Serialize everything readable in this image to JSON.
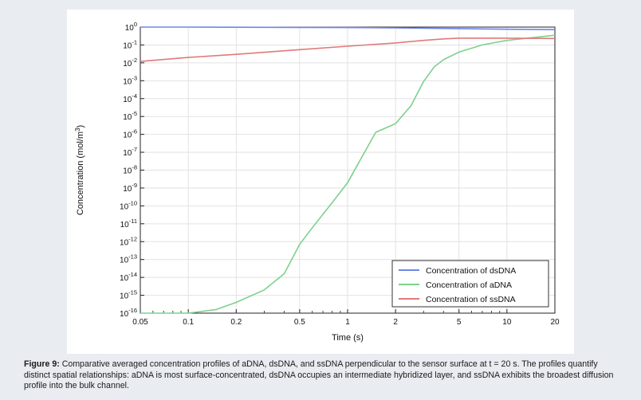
{
  "caption": {
    "label": "Figure 9:",
    "text": "Comparative averaged concentration profiles of aDNA, dsDNA, and ssDNA perpendicular to the sensor surface at t = 20 s. The profiles quantify distinct spatial relationships: aDNA is most surface-concentrated, dsDNA occupies an intermediate hybridized layer, and ssDNA exhibits the broadest diffusion profile into the bulk channel."
  },
  "chart_data": {
    "type": "line",
    "title": "",
    "xlabel": "Time (s)",
    "ylabel_main": "Concentration (mol/m",
    "ylabel_sup": "3",
    "ylabel_end": ")",
    "x_scale": "log",
    "y_scale": "log",
    "xlim": [
      0.05,
      20
    ],
    "ylim_exp": [
      -16,
      0
    ],
    "x_ticks": [
      0.05,
      0.1,
      0.2,
      0.5,
      1,
      2,
      5,
      10,
      20
    ],
    "x_tick_labels": [
      "0.05",
      "0.1",
      "0.2",
      "0.5",
      "1",
      "2",
      "5",
      "10",
      "20"
    ],
    "y_tick_exponents": [
      0,
      -1,
      -2,
      -3,
      -4,
      -5,
      -6,
      -7,
      -8,
      -9,
      -10,
      -11,
      -12,
      -13,
      -14,
      -15,
      -16
    ],
    "y_tick_base": "10",
    "y_tick_labels": [
      "0",
      "-1",
      "-2",
      "-3",
      "-4",
      "-5",
      "-6",
      "-7",
      "-8",
      "-9",
      "-10",
      "-11",
      "-12",
      "-13",
      "-14",
      "-15",
      "-16"
    ],
    "grid": true,
    "legend_position": "bottom-right",
    "series": [
      {
        "name": "Concentration of dsDNA",
        "color": "#6f86e8",
        "x": [
          0.05,
          0.1,
          0.2,
          0.5,
          1,
          2,
          5,
          10,
          20
        ],
        "y": [
          1.0,
          1.0,
          0.98,
          0.96,
          0.94,
          0.9,
          0.82,
          0.76,
          0.72
        ]
      },
      {
        "name": "Concentration of aDNA",
        "color": "#7ed08d",
        "x": [
          0.05,
          0.1,
          0.15,
          0.2,
          0.3,
          0.4,
          0.5,
          0.6,
          0.8,
          1,
          1.5,
          2,
          2.5,
          3,
          3.5,
          4,
          5,
          7,
          10,
          20
        ],
        "y": [
          1e-16,
          1e-16,
          1.6e-16,
          4e-16,
          2e-15,
          1.6e-14,
          7e-13,
          6e-12,
          1.5e-10,
          2e-09,
          1.3e-06,
          4e-06,
          4e-05,
          0.0009,
          0.006,
          0.015,
          0.04,
          0.1,
          0.18,
          0.35
        ]
      },
      {
        "name": "Concentration of ssDNA",
        "color": "#e07a7a",
        "x": [
          0.05,
          0.1,
          0.2,
          0.5,
          1,
          2,
          3,
          4,
          5,
          10,
          20
        ],
        "y": [
          0.012,
          0.02,
          0.03,
          0.055,
          0.085,
          0.13,
          0.18,
          0.22,
          0.24,
          0.24,
          0.23
        ]
      }
    ]
  }
}
